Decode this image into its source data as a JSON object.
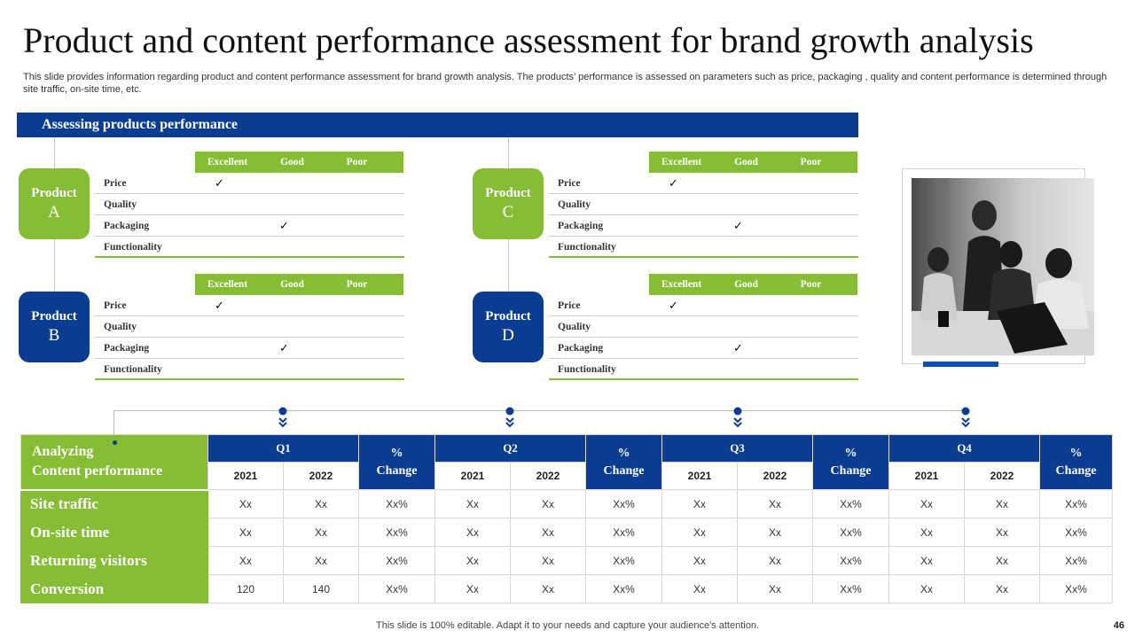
{
  "title": "Product and content performance assessment for brand growth analysis",
  "subtitle": "This slide provides information regarding product and content performance assessment for brand growth analysis. The products’ performance is assessed  on parameters such as price, packaging , quality and content performance is determined through site traffic, on-site time, etc.",
  "products_section": {
    "header": "Assessing products performance",
    "columns": [
      "Excellent",
      "Good",
      "Poor"
    ],
    "check_symbol": "✓",
    "colors": {
      "green": "#86bd35",
      "blue": "#0a3d91"
    },
    "products": [
      {
        "label": "Product",
        "name": "A",
        "color": "green",
        "rows": [
          {
            "label": "Price",
            "rating": "Excellent"
          },
          {
            "label": "Quality",
            "rating": ""
          },
          {
            "label": "Packaging",
            "rating": "Good"
          },
          {
            "label": "Functionality",
            "rating": ""
          }
        ]
      },
      {
        "label": "Product",
        "name": "B",
        "color": "blue",
        "rows": [
          {
            "label": "Price",
            "rating": "Excellent"
          },
          {
            "label": "Quality",
            "rating": ""
          },
          {
            "label": "Packaging",
            "rating": "Good"
          },
          {
            "label": "Functionality",
            "rating": ""
          }
        ]
      },
      {
        "label": "Product",
        "name": "C",
        "color": "green",
        "rows": [
          {
            "label": "Price",
            "rating": "Excellent"
          },
          {
            "label": "Quality",
            "rating": ""
          },
          {
            "label": "Packaging",
            "rating": "Good"
          },
          {
            "label": "Functionality",
            "rating": ""
          }
        ]
      },
      {
        "label": "Product",
        "name": "D",
        "color": "blue",
        "rows": [
          {
            "label": "Price",
            "rating": "Excellent"
          },
          {
            "label": "Quality",
            "rating": ""
          },
          {
            "label": "Packaging",
            "rating": "Good"
          },
          {
            "label": "Functionality",
            "rating": ""
          }
        ]
      }
    ]
  },
  "content_table": {
    "corner_label_line1": "Analyzing",
    "corner_label_line2": "Content performance",
    "quarters": [
      "Q1",
      "Q2",
      "Q3",
      "Q4"
    ],
    "years": [
      "2021",
      "2022"
    ],
    "change_label_line1": "%",
    "change_label_line2": "Change",
    "rows": [
      {
        "label": "Site traffic",
        "cells": [
          "Xx",
          "Xx",
          "Xx%",
          "Xx",
          "Xx",
          "Xx%",
          "Xx",
          "Xx",
          "Xx%",
          "Xx",
          "Xx",
          "Xx%"
        ]
      },
      {
        "label": "On-site time",
        "cells": [
          "Xx",
          "Xx",
          "Xx%",
          "Xx",
          "Xx",
          "Xx%",
          "Xx",
          "Xx",
          "Xx%",
          "Xx",
          "Xx",
          "Xx%"
        ]
      },
      {
        "label": "Returning visitors",
        "cells": [
          "Xx",
          "Xx",
          "Xx%",
          "Xx",
          "Xx",
          "Xx%",
          "Xx",
          "Xx",
          "Xx%",
          "Xx",
          "Xx",
          "Xx%"
        ]
      },
      {
        "label": "Conversion",
        "cells": [
          "120",
          "140",
          "Xx%",
          "Xx",
          "Xx",
          "Xx%",
          "Xx",
          "Xx",
          "Xx%",
          "Xx",
          "Xx",
          "Xx%"
        ]
      }
    ]
  },
  "footer": "This slide is 100% editable. Adapt it to your needs and capture your audience's attention.",
  "page_number": "46"
}
